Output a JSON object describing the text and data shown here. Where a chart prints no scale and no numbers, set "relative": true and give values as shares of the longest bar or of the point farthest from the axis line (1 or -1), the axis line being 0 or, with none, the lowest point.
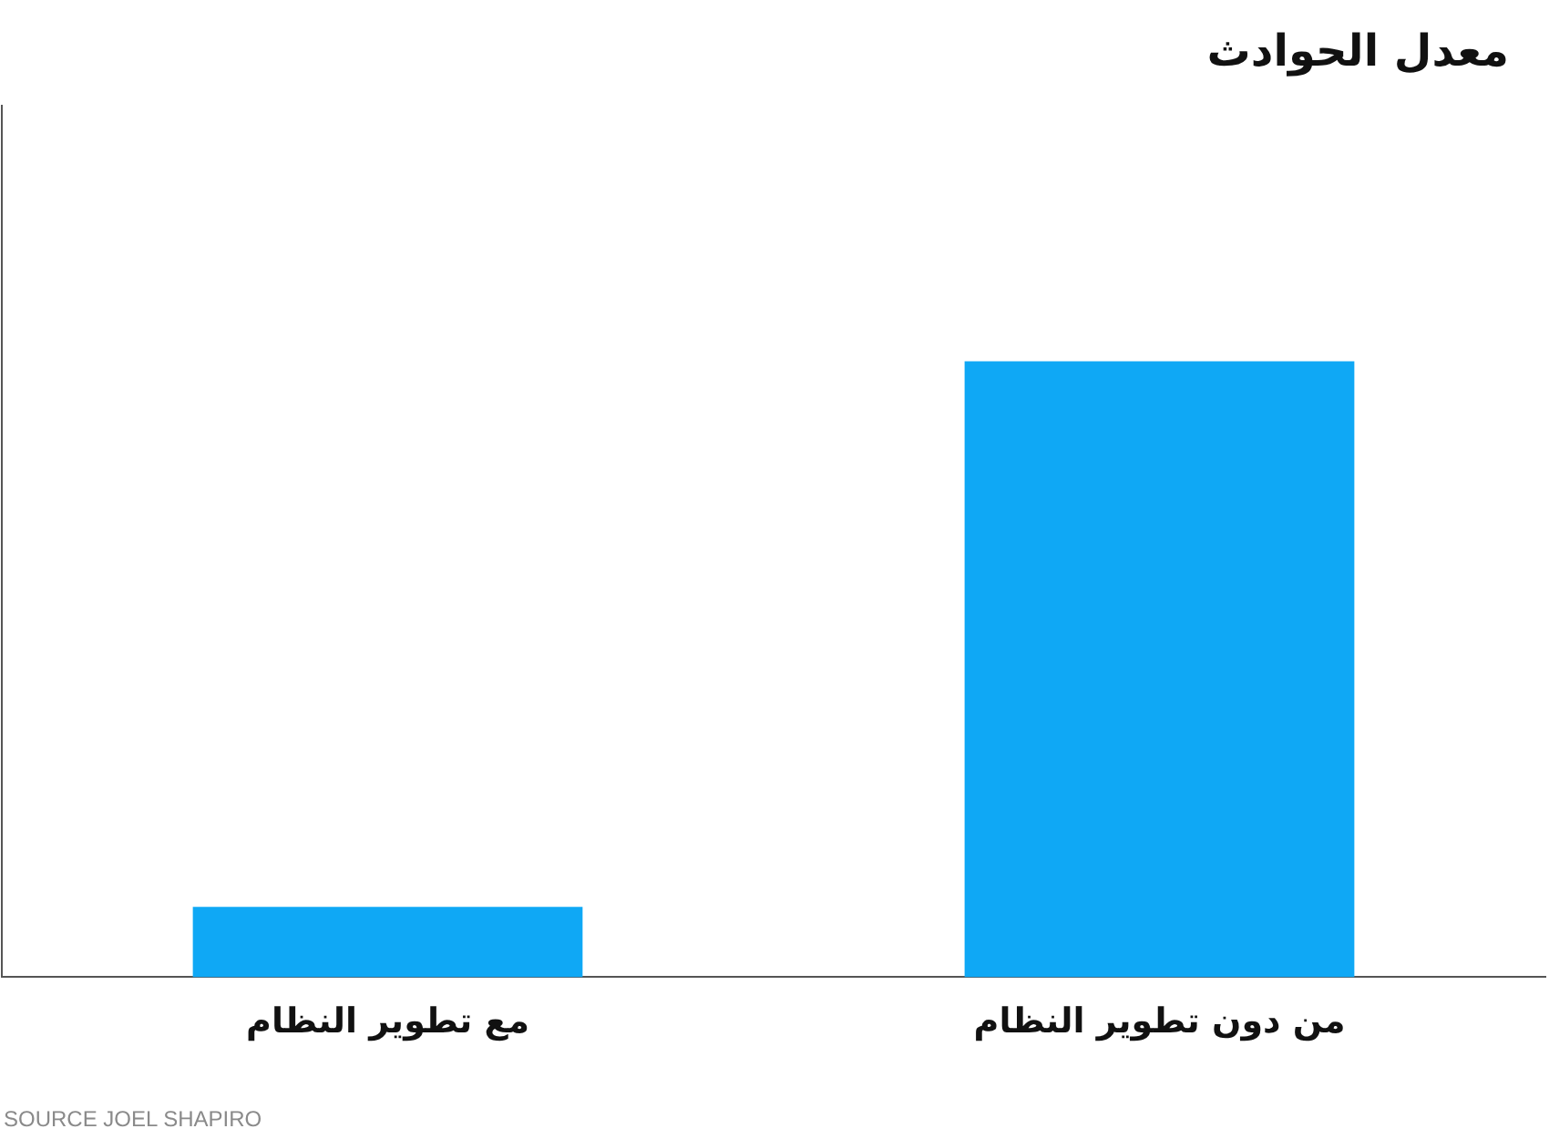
{
  "chart_data": {
    "type": "bar",
    "title": "معدل الحوادث",
    "categories": [
      "مع تطوير النظام",
      "من دون تطوير النظام"
    ],
    "values": [
      0.114,
      1
    ],
    "color": "#0fa8f5",
    "relative": true,
    "grid": false,
    "legend": false,
    "annotations": [
      "SOURCE JOEL SHAPIRO"
    ]
  }
}
